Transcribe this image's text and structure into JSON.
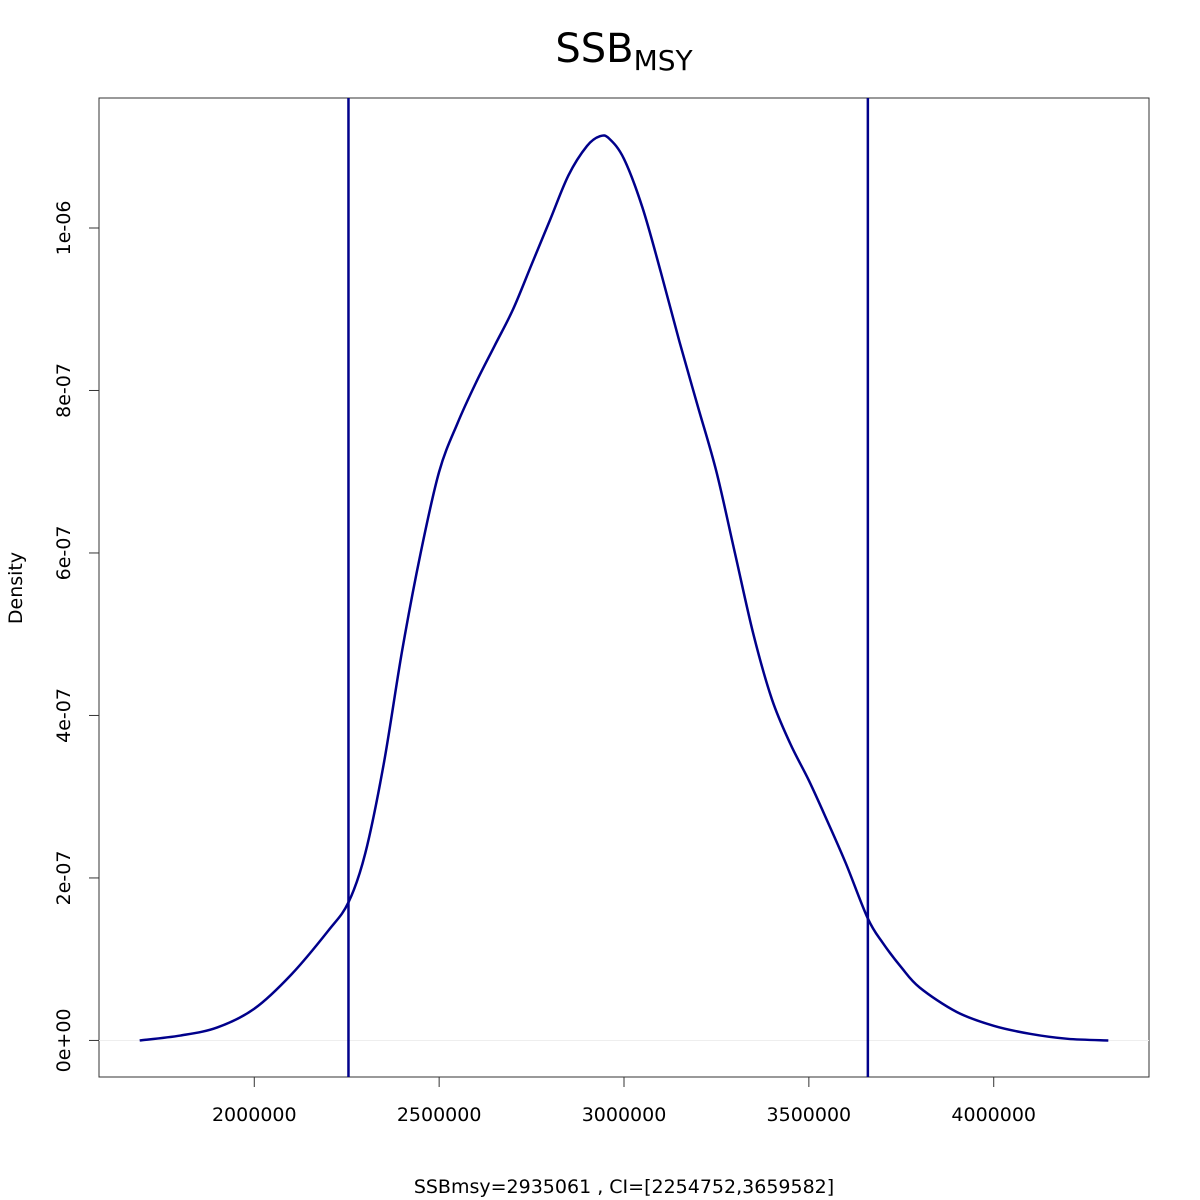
{
  "chart_data": {
    "type": "line",
    "title": "SSB",
    "title_subscript": "MSY",
    "xlabel": "SSBmsy=2935061 , CI=[2254752,3659582]",
    "ylabel": "Density",
    "xlim": [
      1580000,
      4420000
    ],
    "ylim": [
      -4.5e-08,
      1.16e-06
    ],
    "x_ticks": [
      2000000,
      2500000,
      3000000,
      3500000,
      4000000
    ],
    "x_tick_labels": [
      "2000000",
      "2500000",
      "3000000",
      "3500000",
      "4000000"
    ],
    "y_ticks": [
      0,
      2e-07,
      4e-07,
      6e-07,
      8e-07,
      1e-06
    ],
    "y_tick_labels": [
      "0e+00",
      "2e-07",
      "4e-07",
      "6e-07",
      "8e-07",
      "1e-06"
    ],
    "grid": false,
    "line_color": "#00008B",
    "zero_line_color": "#EEEEEE",
    "series": [
      {
        "x": [
          1690000,
          1800000,
          1900000,
          2000000,
          2100000,
          2200000,
          2254752,
          2300000,
          2350000,
          2400000,
          2450000,
          2500000,
          2550000,
          2600000,
          2650000,
          2700000,
          2750000,
          2800000,
          2850000,
          2900000,
          2935061,
          2960000,
          3000000,
          3050000,
          3100000,
          3150000,
          3200000,
          3250000,
          3300000,
          3350000,
          3400000,
          3450000,
          3500000,
          3550000,
          3600000,
          3659582,
          3700000,
          3750000,
          3800000,
          3900000,
          4000000,
          4100000,
          4200000,
          4310000
        ],
        "y": [
          0.0,
          6e-09,
          1.6e-08,
          3.9e-08,
          8.1e-08,
          1.35e-07,
          1.7e-07,
          2.3e-07,
          3.4e-07,
          4.8e-07,
          6e-07,
          7e-07,
          7.6e-07,
          8.1e-07,
          8.55e-07,
          9e-07,
          9.55e-07,
          1.01e-06,
          1.065e-06,
          1.101e-06,
          1.113e-06,
          1.11e-06,
          1.085e-06,
          1.025e-06,
          9.45e-07,
          8.6e-07,
          7.8e-07,
          7e-07,
          6e-07,
          5e-07,
          4.2e-07,
          3.65e-07,
          3.2e-07,
          2.7e-07,
          2.18e-07,
          1.5e-07,
          1.2e-07,
          9e-08,
          6.5e-08,
          3.5e-08,
          1.8e-08,
          8e-09,
          2e-09,
          0.0
        ]
      }
    ],
    "vlines": [
      2254752,
      3659582
    ]
  }
}
